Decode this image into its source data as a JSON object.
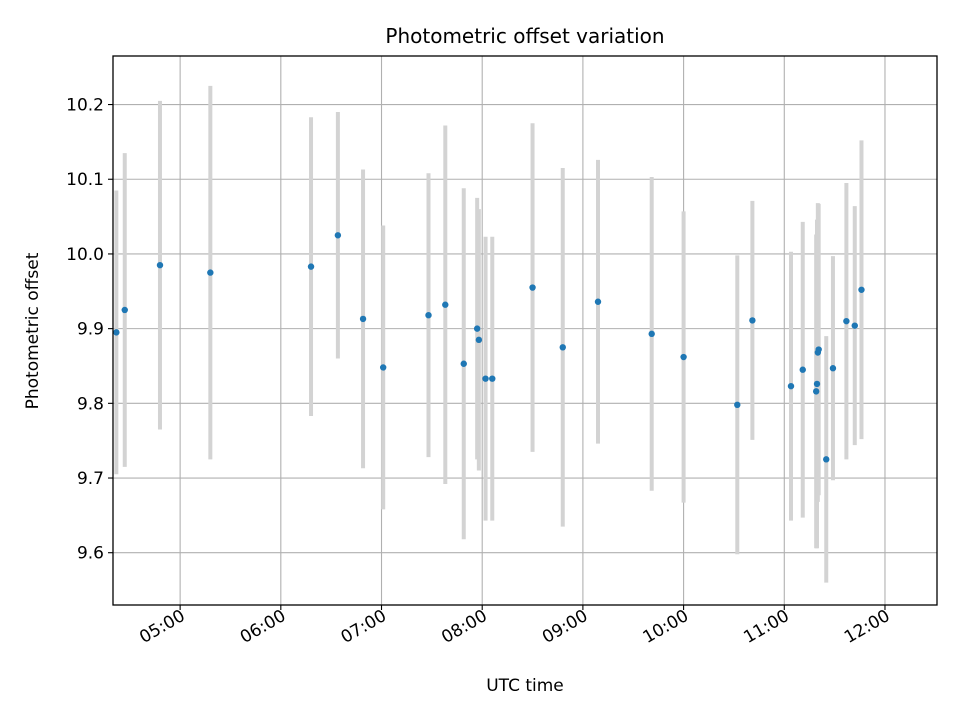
{
  "chart_data": {
    "type": "scatter",
    "title": "Photometric offset variation",
    "xlabel": "UTC time",
    "ylabel": "Photometric offset",
    "x_tick_labels": [
      "05:00",
      "06:00",
      "07:00",
      "08:00",
      "09:00",
      "10:00",
      "11:00",
      "12:00"
    ],
    "y_tick_labels": [
      "9.6",
      "9.7",
      "9.8",
      "9.9",
      "10.0",
      "10.1",
      "10.2"
    ],
    "x_ticks": [
      "04:00",
      "05:00",
      "06:00",
      "07:00",
      "08:00",
      "09:00",
      "10:00",
      "11:00",
      "12:00"
    ],
    "xlim": [
      "04:20",
      "12:31"
    ],
    "ylim": [
      9.53,
      10.265
    ],
    "grid": true,
    "marker_color": "#1f77b4",
    "errorbar_color": "#d3d3d3",
    "series": [
      {
        "points": [
          {
            "t": "04:22",
            "y": 9.895,
            "err": 0.19
          },
          {
            "t": "04:27",
            "y": 9.925,
            "err": 0.21
          },
          {
            "t": "04:48",
            "y": 9.985,
            "err": 0.22
          },
          {
            "t": "05:18",
            "y": 9.975,
            "err": 0.25
          },
          {
            "t": "06:18",
            "y": 9.983,
            "err": 0.2
          },
          {
            "t": "06:34",
            "y": 10.025,
            "err": 0.165
          },
          {
            "t": "06:49",
            "y": 9.913,
            "err": 0.2
          },
          {
            "t": "07:01",
            "y": 9.848,
            "err": 0.19
          },
          {
            "t": "07:28",
            "y": 9.918,
            "err": 0.19
          },
          {
            "t": "07:38",
            "y": 9.932,
            "err": 0.24
          },
          {
            "t": "07:49",
            "y": 9.853,
            "err": 0.235
          },
          {
            "t": "07:57",
            "y": 9.9,
            "err": 0.175
          },
          {
            "t": "07:58",
            "y": 9.885,
            "err": 0.175
          },
          {
            "t": "08:02",
            "y": 9.833,
            "err": 0.19
          },
          {
            "t": "08:06",
            "y": 9.833,
            "err": 0.19
          },
          {
            "t": "08:30",
            "y": 9.955,
            "err": 0.22
          },
          {
            "t": "08:48",
            "y": 9.875,
            "err": 0.24
          },
          {
            "t": "09:09",
            "y": 9.936,
            "err": 0.19
          },
          {
            "t": "09:41",
            "y": 9.893,
            "err": 0.21
          },
          {
            "t": "10:00",
            "y": 9.862,
            "err": 0.195
          },
          {
            "t": "10:32",
            "y": 9.798,
            "err": 0.2
          },
          {
            "t": "10:41",
            "y": 9.911,
            "err": 0.16
          },
          {
            "t": "11:04",
            "y": 9.823,
            "err": 0.18
          },
          {
            "t": "11:11",
            "y": 9.845,
            "err": 0.198
          },
          {
            "t": "11:19",
            "y": 9.816,
            "err": 0.21
          },
          {
            "t": "11:19.5",
            "y": 9.826,
            "err": 0.22
          },
          {
            "t": "11:20",
            "y": 9.868,
            "err": 0.2
          },
          {
            "t": "11:20.5",
            "y": 9.872,
            "err": 0.195
          },
          {
            "t": "11:25",
            "y": 9.725,
            "err": 0.165
          },
          {
            "t": "11:29",
            "y": 9.847,
            "err": 0.15
          },
          {
            "t": "11:37",
            "y": 9.91,
            "err": 0.185
          },
          {
            "t": "11:42",
            "y": 9.904,
            "err": 0.16
          },
          {
            "t": "11:46",
            "y": 9.952,
            "err": 0.2
          }
        ]
      }
    ]
  }
}
